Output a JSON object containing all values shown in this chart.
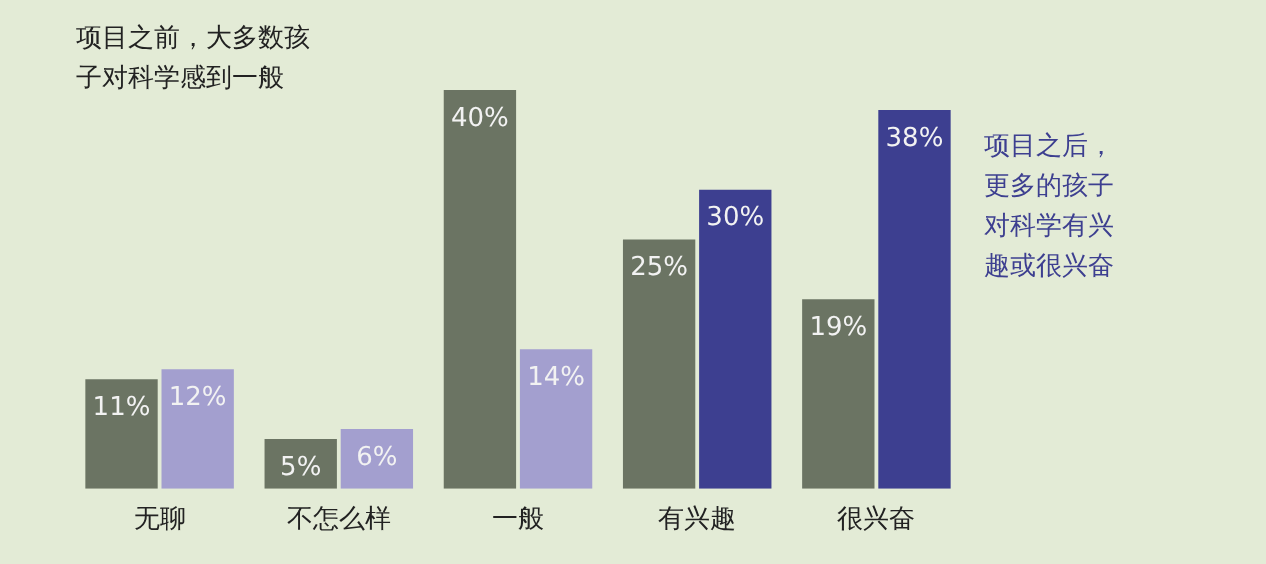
{
  "chart_data": {
    "type": "bar",
    "categories": [
      "无聊",
      "不怎么样",
      "一般",
      "有兴趣",
      "很兴奋"
    ],
    "series": [
      {
        "colors": [
          "#6b7463",
          "#6b7463",
          "#6b7463",
          "#6b7463",
          "#6b7463"
        ],
        "values": [
          11,
          5,
          40,
          25,
          19
        ],
        "value_labels": [
          "11%",
          "5%",
          "40%",
          "25%",
          "19%"
        ]
      },
      {
        "colors": [
          "#a39fcf",
          "#a39fcf",
          "#a39fcf",
          "#3d3f90",
          "#3d3f90"
        ],
        "values": [
          12,
          6,
          14,
          30,
          38
        ],
        "value_labels": [
          "12%",
          "6%",
          "14%",
          "30%",
          "38%"
        ]
      }
    ],
    "grid": false,
    "legend": false,
    "annotations": [
      "项目之前，大多数孩子对科学感到一般",
      "项目之后，更多的孩子对科学有兴趣或很兴奋"
    ]
  }
}
